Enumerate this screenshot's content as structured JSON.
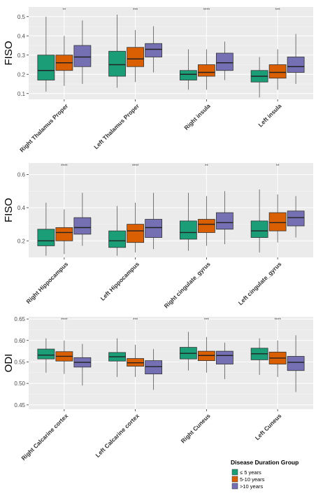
{
  "chart_data": [
    {
      "type": "boxplot",
      "ylabel": "FISO",
      "ylim": [
        0.07,
        0.55
      ],
      "yticks": [
        0.1,
        0.2,
        0.3,
        0.4,
        0.5
      ],
      "ytick_labels": [
        "0.1",
        "0.2",
        "0.3",
        "0.4",
        "0.5"
      ],
      "categories": [
        "Right Thalamus Proper",
        "Left Thalamus Proper",
        "Right insula",
        "Left insula"
      ],
      "significance": [
        "**",
        "***",
        "****",
        "***"
      ],
      "groups": [
        [
          {
            "q1": 0.17,
            "median": 0.22,
            "q3": 0.3,
            "min": 0.11,
            "max": 0.5
          },
          {
            "q1": 0.22,
            "median": 0.26,
            "q3": 0.3,
            "min": 0.14,
            "max": 0.4
          },
          {
            "q1": 0.24,
            "median": 0.29,
            "q3": 0.35,
            "min": 0.15,
            "max": 0.48
          }
        ],
        [
          {
            "q1": 0.19,
            "median": 0.25,
            "q3": 0.32,
            "min": 0.13,
            "max": 0.51
          },
          {
            "q1": 0.24,
            "median": 0.28,
            "q3": 0.34,
            "min": 0.16,
            "max": 0.43
          },
          {
            "q1": 0.29,
            "median": 0.33,
            "q3": 0.36,
            "min": 0.21,
            "max": 0.45
          }
        ],
        [
          {
            "q1": 0.17,
            "median": 0.2,
            "q3": 0.22,
            "min": 0.12,
            "max": 0.33
          },
          {
            "q1": 0.19,
            "median": 0.21,
            "q3": 0.25,
            "min": 0.12,
            "max": 0.33
          },
          {
            "q1": 0.22,
            "median": 0.26,
            "q3": 0.31,
            "min": 0.17,
            "max": 0.37
          }
        ],
        [
          {
            "q1": 0.16,
            "median": 0.19,
            "q3": 0.22,
            "min": 0.08,
            "max": 0.29
          },
          {
            "q1": 0.18,
            "median": 0.21,
            "q3": 0.25,
            "min": 0.12,
            "max": 0.33
          },
          {
            "q1": 0.21,
            "median": 0.24,
            "q3": 0.29,
            "min": 0.15,
            "max": 0.41
          }
        ]
      ]
    },
    {
      "type": "boxplot",
      "ylabel": "FISO",
      "ylim": [
        0.1,
        0.67
      ],
      "yticks": [
        0.2,
        0.4,
        0.6
      ],
      "ytick_labels": [
        "0.2",
        "0.4",
        "0.6"
      ],
      "categories": [
        "Right Hippocampus",
        "Left Hippocampus",
        "Right cingulate_gyrus",
        "Left cingulate_gyrus"
      ],
      "significance": [
        "****",
        "****",
        "**",
        "**"
      ],
      "groups": [
        [
          {
            "q1": 0.17,
            "median": 0.2,
            "q3": 0.27,
            "min": 0.11,
            "max": 0.43
          },
          {
            "q1": 0.2,
            "median": 0.25,
            "q3": 0.28,
            "min": 0.12,
            "max": 0.39
          },
          {
            "q1": 0.24,
            "median": 0.28,
            "q3": 0.34,
            "min": 0.17,
            "max": 0.49
          }
        ],
        [
          {
            "q1": 0.16,
            "median": 0.2,
            "q3": 0.26,
            "min": 0.11,
            "max": 0.41
          },
          {
            "q1": 0.19,
            "median": 0.26,
            "q3": 0.3,
            "min": 0.13,
            "max": 0.43
          },
          {
            "q1": 0.22,
            "median": 0.28,
            "q3": 0.33,
            "min": 0.15,
            "max": 0.49
          }
        ],
        [
          {
            "q1": 0.21,
            "median": 0.25,
            "q3": 0.32,
            "min": 0.14,
            "max": 0.49
          },
          {
            "q1": 0.25,
            "median": 0.3,
            "q3": 0.33,
            "min": 0.17,
            "max": 0.47
          },
          {
            "q1": 0.27,
            "median": 0.31,
            "q3": 0.37,
            "min": 0.18,
            "max": 0.5
          }
        ],
        [
          {
            "q1": 0.22,
            "median": 0.26,
            "q3": 0.32,
            "min": 0.13,
            "max": 0.51
          },
          {
            "q1": 0.26,
            "median": 0.31,
            "q3": 0.37,
            "min": 0.19,
            "max": 0.48
          },
          {
            "q1": 0.29,
            "median": 0.34,
            "q3": 0.38,
            "min": 0.22,
            "max": 0.47
          }
        ]
      ]
    },
    {
      "type": "boxplot",
      "ylabel": "ODI",
      "ylim": [
        0.44,
        0.655
      ],
      "yticks": [
        0.45,
        0.5,
        0.55,
        0.6,
        0.65
      ],
      "ytick_labels": [
        "0.45",
        "0.50",
        "0.55",
        "0.60",
        "0.65"
      ],
      "categories": [
        "Right Calcarine cortex",
        "Left Calcarine cortex",
        "Right Cuneus",
        "Left Cuneus"
      ],
      "significance": [
        "****",
        "***",
        "***",
        "****"
      ],
      "groups": [
        [
          {
            "q1": 0.557,
            "median": 0.566,
            "q3": 0.58,
            "min": 0.525,
            "max": 0.605
          },
          {
            "q1": 0.552,
            "median": 0.563,
            "q3": 0.574,
            "min": 0.522,
            "max": 0.6
          },
          {
            "q1": 0.538,
            "median": 0.549,
            "q3": 0.56,
            "min": 0.495,
            "max": 0.592
          }
        ],
        [
          {
            "q1": 0.552,
            "median": 0.562,
            "q3": 0.572,
            "min": 0.515,
            "max": 0.605
          },
          {
            "q1": 0.54,
            "median": 0.548,
            "q3": 0.558,
            "min": 0.515,
            "max": 0.59
          },
          {
            "q1": 0.522,
            "median": 0.539,
            "q3": 0.553,
            "min": 0.485,
            "max": 0.58
          }
        ],
        [
          {
            "q1": 0.557,
            "median": 0.57,
            "q3": 0.584,
            "min": 0.53,
            "max": 0.62
          },
          {
            "q1": 0.553,
            "median": 0.565,
            "q3": 0.575,
            "min": 0.525,
            "max": 0.608
          },
          {
            "q1": 0.545,
            "median": 0.565,
            "q3": 0.575,
            "min": 0.51,
            "max": 0.595
          }
        ],
        [
          {
            "q1": 0.555,
            "median": 0.569,
            "q3": 0.582,
            "min": 0.52,
            "max": 0.605
          },
          {
            "q1": 0.545,
            "median": 0.559,
            "q3": 0.573,
            "min": 0.515,
            "max": 0.6
          },
          {
            "q1": 0.53,
            "median": 0.549,
            "q3": 0.563,
            "min": 0.48,
            "max": 0.612
          }
        ]
      ]
    }
  ],
  "legend": {
    "title": "Disease Duration Group",
    "placement": "bottom-right",
    "items": [
      {
        "label": "≤ 5 years",
        "color": "#1b9e77"
      },
      {
        "label": "5-10 years",
        "color": "#d95f02"
      },
      {
        "label": ">10 years",
        "color": "#7570b3"
      }
    ]
  },
  "panel_background": "#ebebeb",
  "grid_color": "#ffffff"
}
